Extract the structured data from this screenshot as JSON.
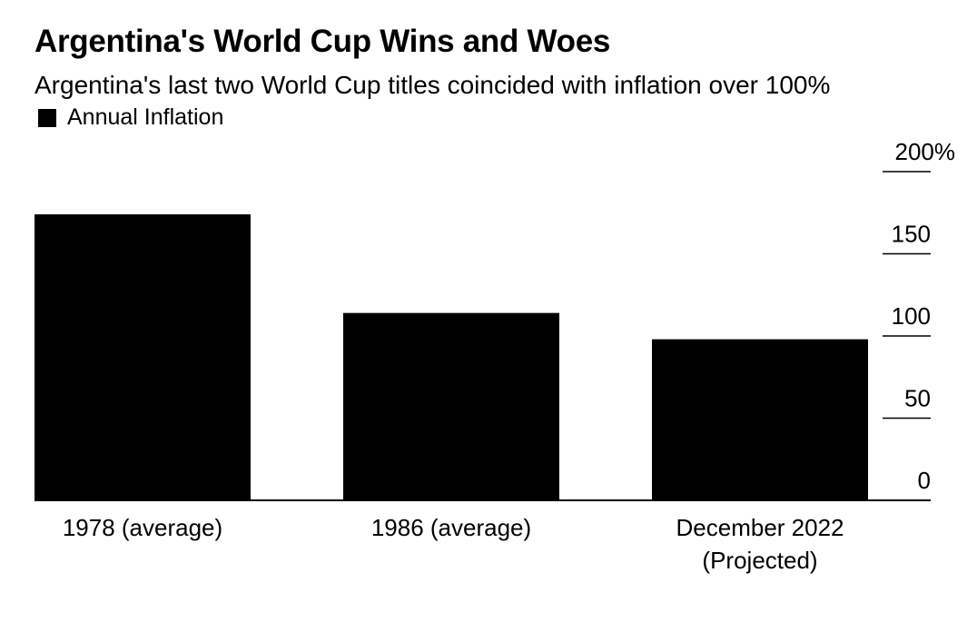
{
  "chart_data": {
    "type": "bar",
    "title": "Argentina's World Cup Wins and Woes",
    "subtitle": "Argentina's last two World Cup titles coincided with inflation over 100%",
    "legend": {
      "placement": "top-left",
      "entries": [
        "Annual Inflation"
      ]
    },
    "categories": [
      [
        "1978 (average)"
      ],
      [
        "1986 (average)"
      ],
      [
        "December 2022",
        "(Projected)"
      ]
    ],
    "series": [
      {
        "name": "Annual Inflation",
        "values": [
          174,
          114,
          98
        ],
        "color": "#000000"
      }
    ],
    "yaxis": {
      "position": "right",
      "ylim": [
        0,
        200
      ],
      "ticks": [
        0,
        50,
        100,
        150,
        200
      ],
      "tick_labels": [
        "0",
        "50",
        "100",
        "150",
        "200%"
      ]
    },
    "grid": false
  }
}
